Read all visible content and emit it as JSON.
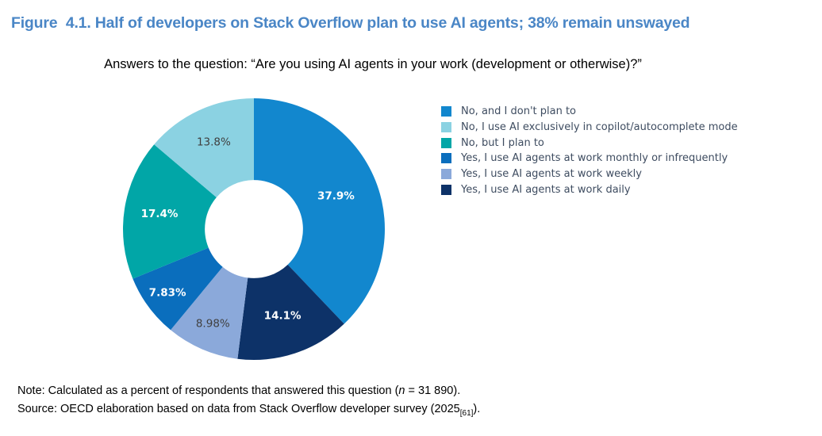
{
  "figure": {
    "title": "Figure  4.1. Half of developers on Stack Overflow plan to use AI agents; 38% remain unswayed",
    "subtitle": "Answers to the question: “Are you using AI agents in your work (development or otherwise)?”",
    "title_color": "#4a86c6",
    "note": {
      "prefix": "Note: Calculated as a percent of respondents that answered this question (",
      "italic": "n",
      "suffix": " = 31 890)."
    },
    "source": {
      "prefix": "Source: OECD elaboration based on data from Stack Overflow developer survey (2025",
      "subscript": "[61]",
      "suffix": ")."
    }
  },
  "chart_data": {
    "type": "pie",
    "donut": true,
    "title": "Half of developers on Stack Overflow plan to use AI agents; 38% remain unswayed",
    "subtitle": "Answers to the question: “Are you using AI agents in your work (development or otherwise)?”",
    "legend_position": "right",
    "start_angle_deg": 0,
    "direction": "clockwise",
    "inner_radius_frac": 0.375,
    "slices": [
      {
        "label": "No, and I don't plan to",
        "value": 37.9,
        "display": "37.9%",
        "color": "#1287ce",
        "label_color": "#ffffff",
        "label_weight": "bold",
        "label_r": 0.675
      },
      {
        "label": "No, I use AI exclusively in copilot/autocomplete mode",
        "value": 13.8,
        "display": "13.8%",
        "color": "#8bd2e2",
        "label_color": "#404040",
        "label_weight": "normal",
        "label_r": 0.73
      },
      {
        "label": "No, but I plan to",
        "value": 17.4,
        "display": "17.4%",
        "color": "#01a6a7",
        "label_color": "#ffffff",
        "label_weight": "bold",
        "label_r": 0.73
      },
      {
        "label": "Yes, I use AI agents at work monthly or infrequently",
        "value": 7.83,
        "display": "7.83%",
        "color": "#0a6ebd",
        "label_color": "#ffffff",
        "label_weight": "bold",
        "label_r": 0.82
      },
      {
        "label": "Yes, I use AI agents at work weekly",
        "value": 8.98,
        "display": "8.98%",
        "color": "#8ba9da",
        "label_color": "#404040",
        "label_weight": "normal",
        "label_r": 0.79
      },
      {
        "label": "Yes, I use AI agents at work daily",
        "value": 14.1,
        "display": "14.1%",
        "color": "#0d3268",
        "label_color": "#ffffff",
        "label_weight": "bold",
        "label_r": 0.7
      }
    ],
    "plot_order": [
      0,
      5,
      4,
      3,
      2,
      1
    ]
  }
}
